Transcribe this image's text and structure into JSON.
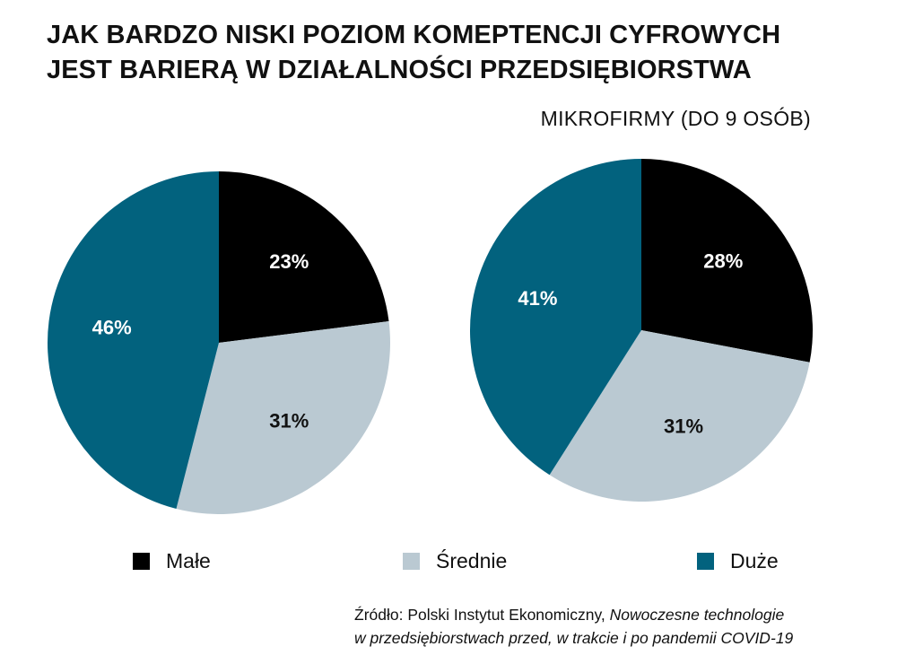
{
  "title": {
    "line1": "JAK BARDZO NISKI POZIOM KOMEPTENCJI CYFROWYCH",
    "line2": "JEST BARIERĄ W DZIAŁALNOŚCI PRZEDSIĘBIORSTWA"
  },
  "subtitle": "MIKROFIRMY (DO 9 OSÓB)",
  "colors": {
    "male": "#000000",
    "srednie": "#bac9d2",
    "duze": "#02627e",
    "label_light": "#ffffff",
    "label_dark": "#111111"
  },
  "legend": [
    {
      "label": "Małe",
      "color": "#000000"
    },
    {
      "label": "Średnie",
      "color": "#bac9d2"
    },
    {
      "label": "Duże",
      "color": "#02627e"
    }
  ],
  "chart_data": [
    {
      "type": "pie",
      "categories": [
        "Małe",
        "Średnie",
        "Duże"
      ],
      "values": [
        23,
        31,
        46
      ],
      "labels": [
        "23%",
        "31%",
        "46%"
      ]
    },
    {
      "type": "pie",
      "title": "MIKROFIRMY (DO 9 OSÓB)",
      "categories": [
        "Małe",
        "Średnie",
        "Duże"
      ],
      "values": [
        28,
        31,
        41
      ],
      "labels": [
        "28%",
        "31%",
        "41%"
      ]
    }
  ],
  "source": {
    "prefix": "Źródło: Polski Instytut Ekonomiczny, ",
    "italic1": "Nowoczesne technologie",
    "line2": "w przedsiębiorstwach przed, w trakcie i po pandemii COVID-19"
  }
}
